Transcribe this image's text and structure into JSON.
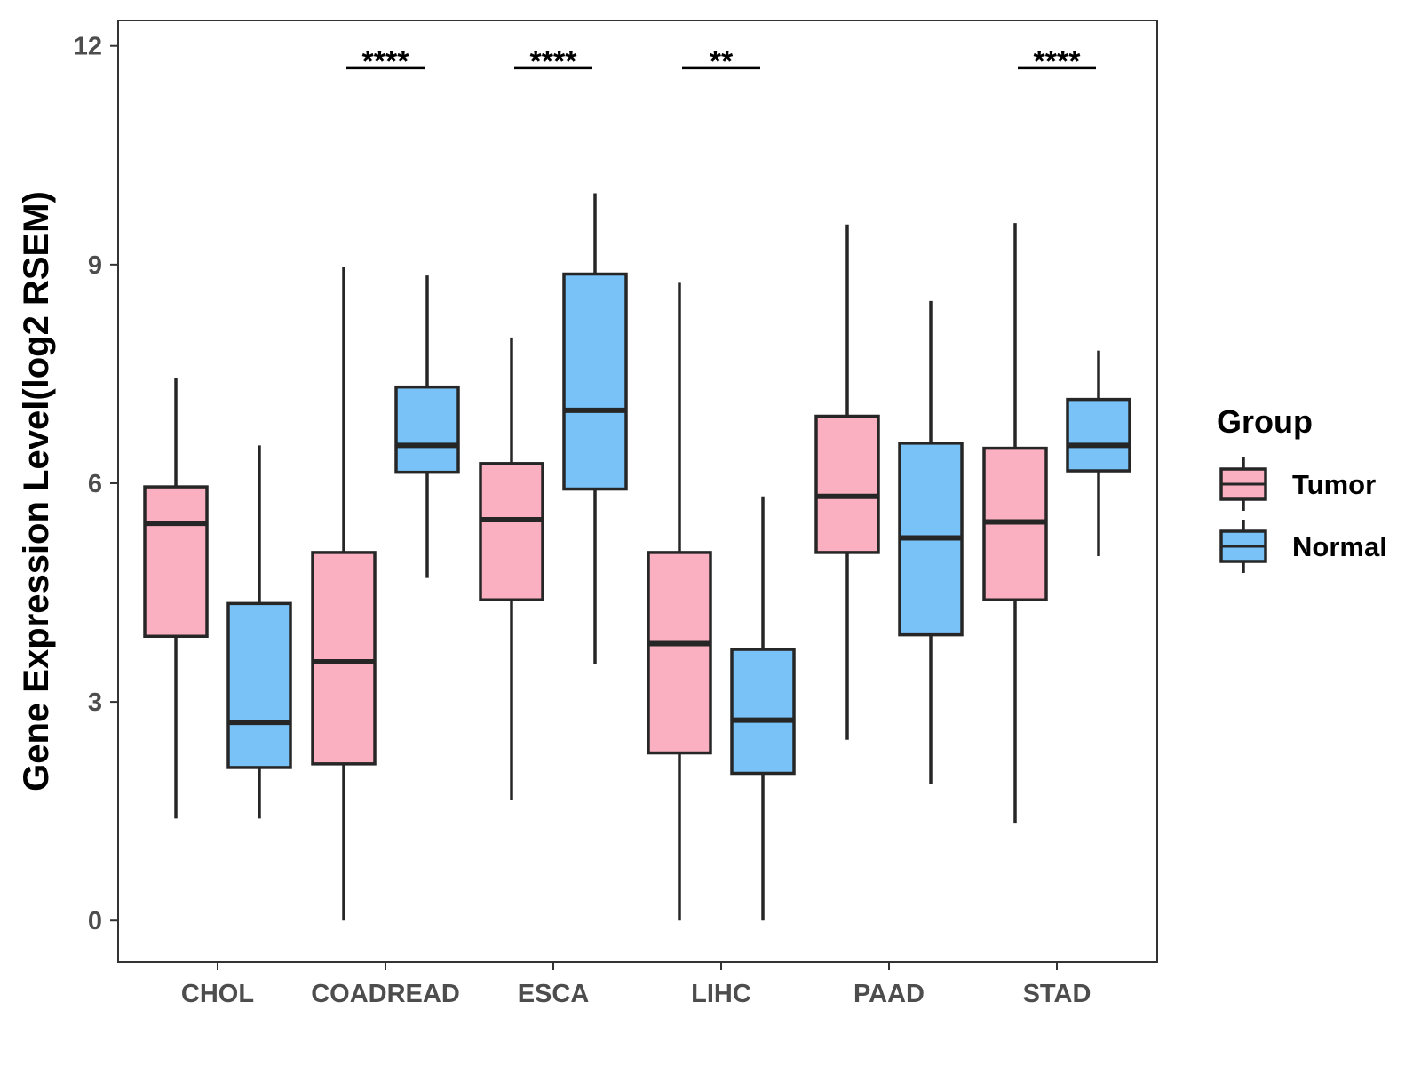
{
  "chart_data": {
    "type": "boxplot",
    "title": "",
    "xlabel": "",
    "ylabel": "Gene Expression Level(log2 RSEM)",
    "ylim": [
      -0.57,
      12.35
    ],
    "yticks": [
      0,
      3,
      6,
      9,
      12
    ],
    "ytick_labels": [
      "0",
      "3",
      "6",
      "9",
      "12"
    ],
    "categories": [
      "CHOL",
      "COADREAD",
      "ESCA",
      "LIHC",
      "PAAD",
      "STAD"
    ],
    "legend": {
      "title": "Group",
      "position": "right",
      "entries": [
        {
          "name": "Tumor",
          "color": "#FBB0C2"
        },
        {
          "name": "Normal",
          "color": "#78C2F8"
        }
      ]
    },
    "series": [
      {
        "name": "Tumor",
        "color": "#FBB0C2",
        "boxes": [
          {
            "category": "CHOL",
            "min": 1.4,
            "q1": 3.9,
            "median": 5.45,
            "q3": 5.95,
            "max": 7.45
          },
          {
            "category": "COADREAD",
            "min": 0.0,
            "q1": 2.15,
            "median": 3.55,
            "q3": 5.05,
            "max": 8.97
          },
          {
            "category": "ESCA",
            "min": 1.65,
            "q1": 4.4,
            "median": 5.5,
            "q3": 6.27,
            "max": 8.0
          },
          {
            "category": "LIHC",
            "min": 0.0,
            "q1": 2.3,
            "median": 3.8,
            "q3": 5.05,
            "max": 8.75
          },
          {
            "category": "PAAD",
            "min": 2.48,
            "q1": 5.05,
            "median": 5.82,
            "q3": 6.92,
            "max": 9.55
          },
          {
            "category": "STAD",
            "min": 1.33,
            "q1": 4.4,
            "median": 5.47,
            "q3": 6.48,
            "max": 9.57
          }
        ]
      },
      {
        "name": "Normal",
        "color": "#78C2F8",
        "boxes": [
          {
            "category": "CHOL",
            "min": 1.4,
            "q1": 2.1,
            "median": 2.72,
            "q3": 4.35,
            "max": 6.52
          },
          {
            "category": "COADREAD",
            "min": 4.7,
            "q1": 6.15,
            "median": 6.52,
            "q3": 7.32,
            "max": 8.85
          },
          {
            "category": "ESCA",
            "min": 3.52,
            "q1": 5.92,
            "median": 7.0,
            "q3": 8.87,
            "max": 9.98
          },
          {
            "category": "LIHC",
            "min": 0.0,
            "q1": 2.02,
            "median": 2.75,
            "q3": 3.72,
            "max": 5.82
          },
          {
            "category": "PAAD",
            "min": 1.87,
            "q1": 3.92,
            "median": 5.25,
            "q3": 6.55,
            "max": 8.5
          },
          {
            "category": "STAD",
            "min": 5.0,
            "q1": 6.17,
            "median": 6.52,
            "q3": 7.15,
            "max": 7.82
          }
        ]
      }
    ],
    "annotations": [
      {
        "category": "COADREAD",
        "text": "****",
        "y": 11.7
      },
      {
        "category": "ESCA",
        "text": "****",
        "y": 11.7
      },
      {
        "category": "LIHC",
        "text": "**",
        "y": 11.7
      },
      {
        "category": "STAD",
        "text": "****",
        "y": 11.7
      }
    ],
    "grid": false
  }
}
